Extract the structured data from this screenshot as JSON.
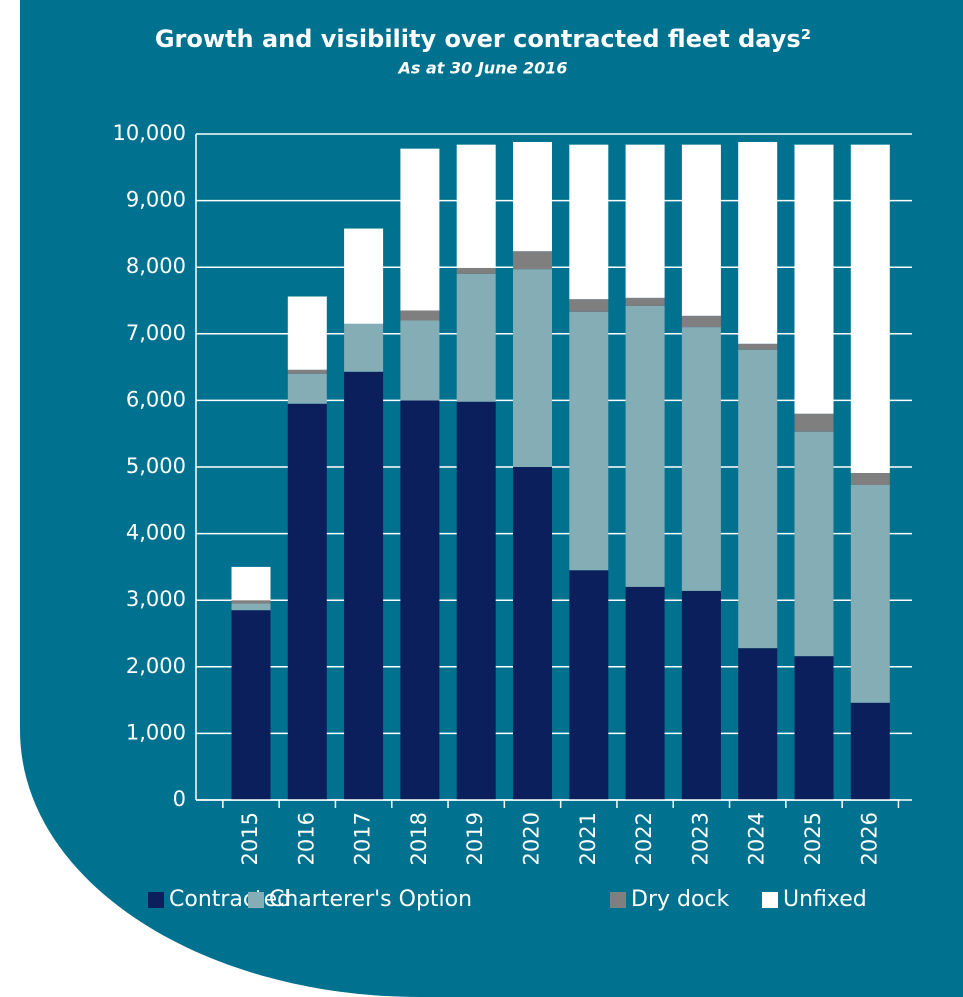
{
  "chart_data": {
    "type": "stacked-bar",
    "title": "Growth and visibility over contracted fleet days²",
    "subtitle": "As at 30 June 2016",
    "categories": [
      "2015",
      "2016",
      "2017",
      "2018",
      "2019",
      "2020",
      "2021",
      "2022",
      "2023",
      "2024",
      "2025",
      "2026"
    ],
    "series": [
      {
        "name": "Contracted",
        "color": "#0b1f5c",
        "values": [
          2850,
          5950,
          6430,
          6000,
          5980,
          5000,
          3450,
          3200,
          3140,
          2280,
          2160,
          1460
        ]
      },
      {
        "name": "Charterer's Option",
        "color": "#85adb5",
        "values": [
          100,
          450,
          720,
          1200,
          1920,
          2970,
          3880,
          4220,
          3960,
          4480,
          3370,
          3270
        ]
      },
      {
        "name": "Dry dock",
        "color": "#7f7f7f",
        "values": [
          50,
          60,
          0,
          150,
          90,
          270,
          190,
          120,
          170,
          90,
          270,
          180
        ]
      },
      {
        "name": "Unfixed",
        "color": "#ffffff",
        "values": [
          500,
          1100,
          1430,
          2430,
          1850,
          1640,
          2320,
          2300,
          2570,
          3030,
          4040,
          4930
        ]
      }
    ],
    "ylim": [
      0,
      10000
    ],
    "yticks": [
      0,
      {
        "value": 1000,
        "label": "1,000"
      },
      {
        "value": 2000,
        "label": "2,000"
      },
      {
        "value": 3000,
        "label": "3,000"
      },
      {
        "value": 4000,
        "label": "4,000"
      },
      {
        "value": 5000,
        "label": "5,000"
      },
      {
        "value": 6000,
        "label": "6,000"
      },
      {
        "value": 7000,
        "label": "7,000"
      },
      {
        "value": 8000,
        "label": "8,000"
      },
      {
        "value": 9000,
        "label": "9,000"
      },
      {
        "value": 10000,
        "label": "10,000"
      }
    ],
    "grid": true,
    "legend": "bottom"
  }
}
